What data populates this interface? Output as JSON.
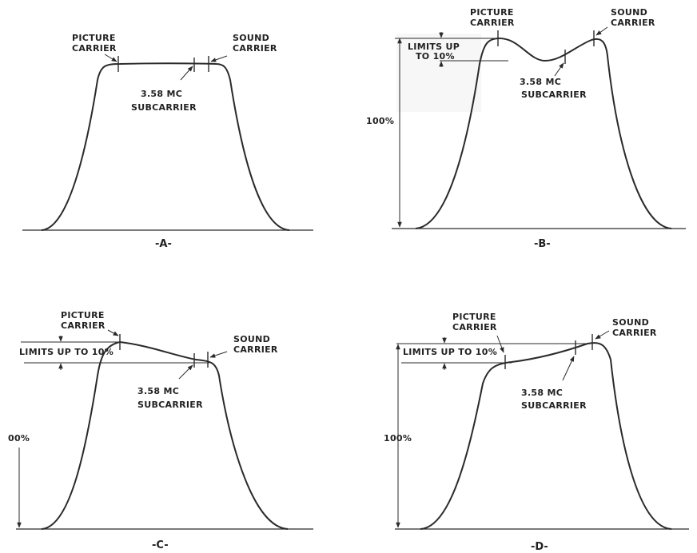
{
  "panels": {
    "a": {
      "caption": "-A-",
      "picture_carrier": [
        "PICTURE",
        "CARRIER"
      ],
      "sound_carrier": [
        "SOUND",
        "CARRIER"
      ],
      "subcarrier": [
        "3.58 MC",
        "SUBCARRIER"
      ]
    },
    "b": {
      "caption": "-B-",
      "picture_carrier": [
        "PICTURE",
        "CARRIER"
      ],
      "sound_carrier": [
        "SOUND",
        "CARRIER"
      ],
      "subcarrier": [
        "3.58 MC",
        "SUBCARRIER"
      ],
      "limits": [
        "LIMITS UP",
        "TO 10%"
      ],
      "percent": "100%"
    },
    "c": {
      "caption": "-C-",
      "picture_carrier": [
        "PICTURE",
        "CARRIER"
      ],
      "sound_carrier": [
        "SOUND",
        "CARRIER"
      ],
      "subcarrier": [
        "3.58 MC",
        "SUBCARRIER"
      ],
      "limits": "LIMITS UP TO 10%",
      "percent": "00%"
    },
    "d": {
      "caption": "-D-",
      "picture_carrier": [
        "PICTURE",
        "CARRIER"
      ],
      "sound_carrier": [
        "SOUND",
        "CARRIER"
      ],
      "subcarrier": [
        "3.58 MC",
        "SUBCARRIER"
      ],
      "limits": "LIMITS UP TO 10%",
      "percent": "100%"
    }
  }
}
